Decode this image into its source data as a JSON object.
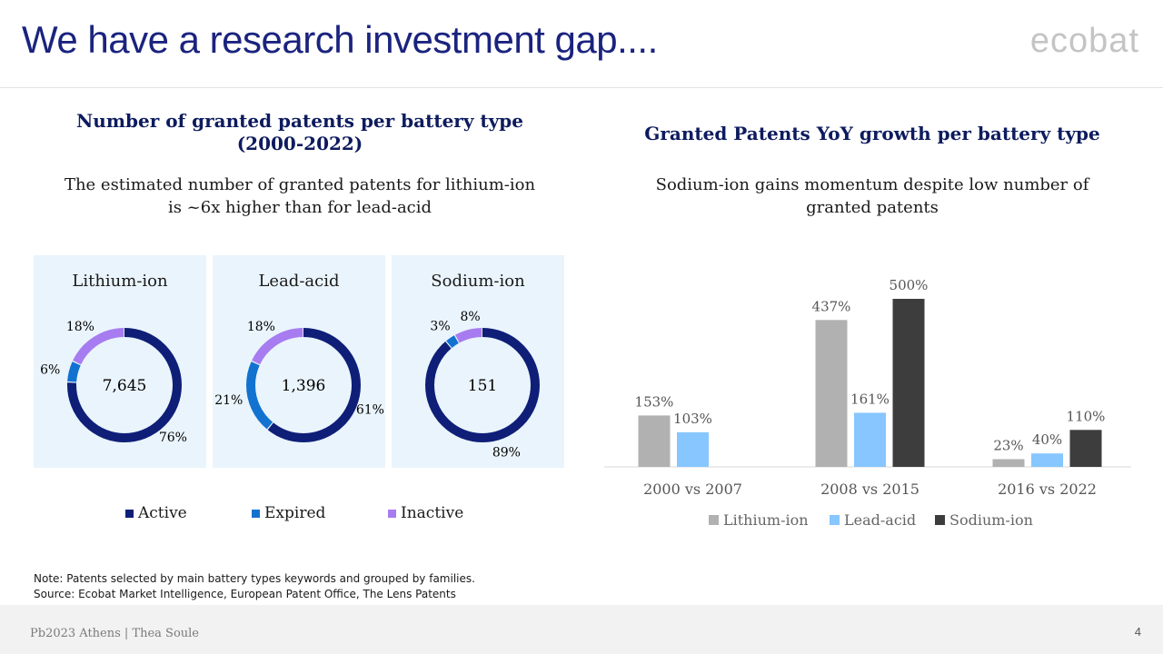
{
  "slide": {
    "title": "We have a research investment gap....",
    "logo": "ecobat",
    "page_number": "4",
    "footer": "Pb2023 Athens | Thea Soule"
  },
  "left_panel": {
    "title_line1": "Number of granted patents per battery type",
    "title_line2": "(2000-2022)",
    "subtitle_line1": "The estimated number of granted patents for lithium-ion",
    "subtitle_line2": "is ~6x higher than for lead-acid"
  },
  "right_panel": {
    "title": "Granted Patents YoY growth per battery type",
    "subtitle_line1": "Sodium-ion gains momentum despite low number of",
    "subtitle_line2": "granted patents"
  },
  "note": {
    "line1": "Note: Patents selected by main battery types keywords and grouped by families.",
    "line2": "Source: Ecobat Market Intelligence, European Patent Office, The Lens Patents"
  },
  "colors": {
    "active": "#0f1f78",
    "expired": "#1272d0",
    "inactive": "#a77cf0",
    "lithium": "#b1b1b1",
    "lead": "#87c6ff",
    "sodium": "#3d3d3d"
  },
  "chart_data": [
    {
      "type": "pie",
      "variant": "donut-group",
      "title": "Number of granted patents per battery type (2000-2022)",
      "legend": [
        "Active",
        "Expired",
        "Inactive"
      ],
      "legend_position": "bottom",
      "charts": [
        {
          "name": "Lithium-ion",
          "total": "7,645",
          "slices": [
            {
              "label": "Active",
              "value": 76,
              "text": "76%"
            },
            {
              "label": "Expired",
              "value": 6,
              "text": "6%"
            },
            {
              "label": "Inactive",
              "value": 18,
              "text": "18%"
            }
          ]
        },
        {
          "name": "Lead-acid",
          "total": "1,396",
          "slices": [
            {
              "label": "Active",
              "value": 61,
              "text": "61%"
            },
            {
              "label": "Expired",
              "value": 21,
              "text": "21%"
            },
            {
              "label": "Inactive",
              "value": 18,
              "text": "18%"
            }
          ]
        },
        {
          "name": "Sodium-ion",
          "total": "151",
          "slices": [
            {
              "label": "Active",
              "value": 89,
              "text": "89%"
            },
            {
              "label": "Expired",
              "value": 3,
              "text": "3%"
            },
            {
              "label": "Inactive",
              "value": 8,
              "text": "8%"
            }
          ]
        }
      ]
    },
    {
      "type": "bar",
      "title": "Granted Patents YoY growth per battery type",
      "categories": [
        "2000 vs 2007",
        "2008 vs 2015",
        "2016 vs 2022"
      ],
      "series": [
        {
          "name": "Lithium-ion",
          "values": [
            153,
            437,
            23
          ],
          "labels": [
            "153%",
            "437%",
            "23%"
          ]
        },
        {
          "name": "Lead-acid",
          "values": [
            103,
            161,
            40
          ],
          "labels": [
            "103%",
            "161%",
            "40%"
          ]
        },
        {
          "name": "Sodium-ion",
          "values": [
            null,
            500,
            110
          ],
          "labels": [
            "",
            "500%",
            "110%"
          ]
        }
      ],
      "ylim": [
        0,
        500
      ],
      "grid": false,
      "legend_position": "bottom",
      "xlabel": "",
      "ylabel": ""
    }
  ]
}
